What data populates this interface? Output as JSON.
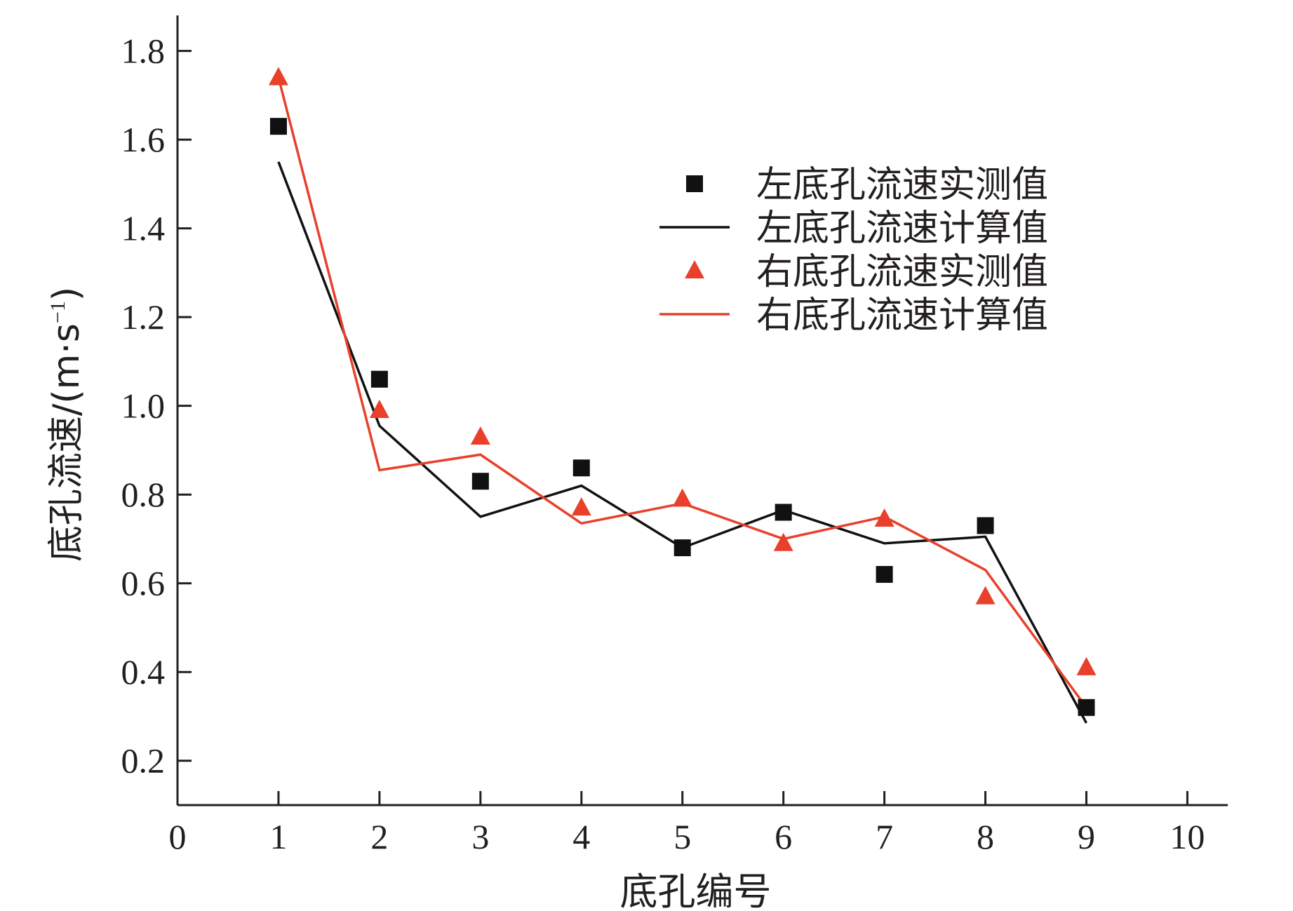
{
  "chart_data": {
    "type": "line",
    "xlabel": "底孔编号",
    "ylabel": "底孔流速/(m·s",
    "ylabel_superscript": "−1",
    "ylabel_close": ")",
    "xlim": [
      0,
      10.4
    ],
    "ylim": [
      0.1,
      1.88
    ],
    "x_ticks": [
      0,
      1,
      2,
      3,
      4,
      5,
      6,
      7,
      8,
      9,
      10
    ],
    "x_tick_labels": [
      "0",
      "1",
      "2",
      "3",
      "4",
      "5",
      "6",
      "7",
      "8",
      "9",
      "10"
    ],
    "y_ticks": [
      0.2,
      0.4,
      0.6,
      0.8,
      1.0,
      1.2,
      1.4,
      1.6,
      1.8
    ],
    "y_tick_labels": [
      "0.2",
      "0.4",
      "0.6",
      "0.8",
      "1.0",
      "1.2",
      "1.4",
      "1.6",
      "1.8"
    ],
    "grid": false,
    "legend_position": "top-right",
    "x": [
      1,
      2,
      3,
      4,
      5,
      6,
      7,
      8,
      9
    ],
    "series": [
      {
        "name": "左底孔流速实测值",
        "kind": "scatter",
        "marker": "square",
        "color": "#111111",
        "values": [
          1.63,
          1.06,
          0.83,
          0.86,
          0.68,
          0.76,
          0.62,
          0.73,
          0.32
        ]
      },
      {
        "name": "左底孔流速计算值",
        "kind": "line",
        "color": "#111111",
        "values": [
          1.55,
          0.955,
          0.75,
          0.82,
          0.68,
          0.765,
          0.69,
          0.705,
          0.285
        ]
      },
      {
        "name": "右底孔流速实测值",
        "kind": "scatter",
        "marker": "triangle",
        "color": "#e8402b",
        "values": [
          1.74,
          0.99,
          0.93,
          0.77,
          0.79,
          0.69,
          0.745,
          0.57,
          0.41
        ]
      },
      {
        "name": "右底孔流速计算值",
        "kind": "line",
        "color": "#e8402b",
        "values": [
          1.74,
          0.855,
          0.89,
          0.735,
          0.78,
          0.7,
          0.75,
          0.63,
          0.32
        ]
      }
    ]
  }
}
